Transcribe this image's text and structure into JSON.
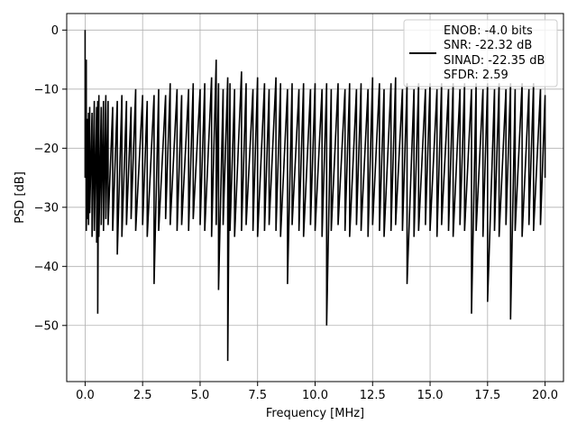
{
  "chart_data": {
    "type": "line",
    "xlabel": "Frequency [MHz]",
    "ylabel": "PSD [dB]",
    "xlim": [
      -0.8,
      20.8
    ],
    "ylim": [
      -59.5,
      2.8
    ],
    "x_ticks": [
      0.0,
      2.5,
      5.0,
      7.5,
      10.0,
      12.5,
      15.0,
      17.5,
      20.0
    ],
    "x_tick_labels": [
      "0.0",
      "2.5",
      "5.0",
      "7.5",
      "10.0",
      "12.5",
      "15.0",
      "17.5",
      "20.0"
    ],
    "y_ticks": [
      0,
      -10,
      -20,
      -30,
      -40,
      -50
    ],
    "y_tick_labels": [
      "0",
      "−10",
      "−20",
      "−30",
      "−40",
      "−50"
    ],
    "grid": true,
    "legend_position": "top-right",
    "legend_entries": [
      "ENOB: -4.0 bits",
      "SNR: -22.32 dB",
      "SINAD: -22.35 dB",
      "SFDR: 2.59"
    ],
    "line_color": "#000000",
    "series": [
      {
        "x": [
          0.0,
          0.05,
          0.1,
          0.15,
          0.2,
          0.3,
          0.4,
          0.5,
          0.55,
          0.6,
          0.7,
          0.8,
          0.9,
          1.0,
          1.2,
          1.4,
          1.6,
          1.8,
          2.0,
          2.2,
          2.5,
          2.7,
          3.0,
          3.2,
          3.5,
          3.7,
          4.0,
          4.2,
          4.5,
          4.7,
          5.0,
          5.2,
          5.5,
          5.7,
          5.8,
          6.0,
          6.2,
          6.3,
          6.5,
          6.8,
          7.0,
          7.3,
          7.5,
          7.8,
          8.0,
          8.3,
          8.5,
          8.8,
          9.0,
          9.3,
          9.5,
          9.8,
          10.0,
          10.3,
          10.5,
          10.7,
          11.0,
          11.3,
          11.5,
          11.8,
          12.0,
          12.3,
          12.5,
          12.8,
          13.0,
          13.3,
          13.5,
          13.8,
          14.0,
          14.3,
          14.5,
          14.8,
          15.0,
          15.3,
          15.5,
          15.8,
          16.0,
          16.3,
          16.5,
          16.8,
          17.0,
          17.3,
          17.5,
          17.8,
          18.0,
          18.3,
          18.5,
          18.7,
          19.0,
          19.3,
          19.5,
          19.8,
          20.0
        ],
        "max": [
          0,
          -5,
          -15,
          -14,
          -13,
          -14,
          -12,
          -13,
          -12,
          -11,
          -13,
          -12,
          -11,
          -12,
          -13,
          -12,
          -11,
          -12,
          -13,
          -10,
          -11,
          -12,
          -11,
          -10,
          -11,
          -9,
          -10,
          -11,
          -10,
          -9,
          -10,
          -9,
          -8,
          -5,
          -9,
          -10,
          -8,
          -9,
          -10,
          -7,
          -9,
          -10,
          -8,
          -9,
          -10,
          -8,
          -9,
          -10,
          -9,
          -10,
          -9,
          -10,
          -9,
          -10,
          -9,
          -10,
          -9,
          -10,
          -9,
          -10,
          -9,
          -10,
          -8,
          -9,
          -10,
          -9,
          -8,
          -10,
          -9,
          -10,
          -9,
          -10,
          -9,
          -10,
          -9,
          -10,
          -9,
          -10,
          -9,
          -10,
          -9,
          -10,
          -9,
          -10,
          -9,
          -10,
          -9,
          -10,
          -9,
          -10,
          -9,
          -10,
          -11
        ],
        "min": [
          -25,
          -34,
          -32,
          -33,
          -31,
          -35,
          -34,
          -36,
          -48,
          -35,
          -33,
          -34,
          -32,
          -33,
          -34,
          -38,
          -35,
          -33,
          -32,
          -34,
          -33,
          -35,
          -43,
          -34,
          -32,
          -33,
          -34,
          -33,
          -34,
          -32,
          -33,
          -34,
          -35,
          -33,
          -44,
          -33,
          -56,
          -34,
          -35,
          -34,
          -33,
          -34,
          -35,
          -34,
          -33,
          -34,
          -35,
          -43,
          -33,
          -34,
          -35,
          -33,
          -34,
          -35,
          -50,
          -34,
          -33,
          -34,
          -35,
          -33,
          -34,
          -35,
          -33,
          -34,
          -35,
          -34,
          -33,
          -34,
          -43,
          -35,
          -34,
          -33,
          -34,
          -35,
          -33,
          -34,
          -35,
          -33,
          -34,
          -48,
          -34,
          -35,
          -46,
          -34,
          -35,
          -33,
          -49,
          -34,
          -35,
          -33,
          -34,
          -33,
          -25
        ]
      }
    ]
  }
}
